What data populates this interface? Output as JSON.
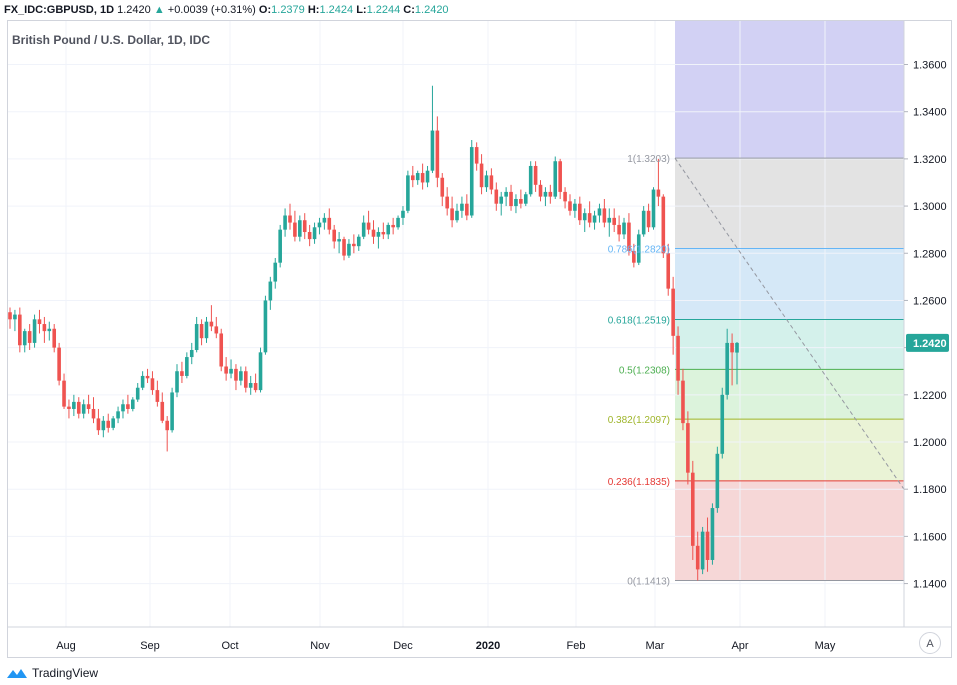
{
  "header": {
    "symbol": "FX_IDC:GBPUSD, 1D",
    "last": "1.2420",
    "change": "+0.0039 (+0.31%)",
    "open_label": "O:",
    "open": "1.2379",
    "high_label": "H:",
    "high": "1.2424",
    "low_label": "L:",
    "low": "1.2244",
    "close_label": "C:",
    "close": "1.2420"
  },
  "chart_title": "British Pound / U.S. Dollar, 1D, IDC",
  "footer": {
    "brand": "TradingView"
  },
  "auto_scale_label": "A",
  "colors": {
    "up": "#26a69a",
    "down": "#ef5350",
    "grid": "#f0f3fa",
    "axis_text": "#131722",
    "price_badge": "#26a69a"
  },
  "chart_data": {
    "type": "candlestick",
    "title": "British Pound / U.S. Dollar, 1D, IDC",
    "y_ticks": [
      "1.3600",
      "1.3400",
      "1.3200",
      "1.3000",
      "1.2800",
      "1.2600",
      "1.2400",
      "1.2200",
      "1.2000",
      "1.1800",
      "1.1600",
      "1.1400"
    ],
    "ylim": [
      1.1198,
      1.3836
    ],
    "x_ticks": [
      {
        "label": "Aug",
        "bold": false
      },
      {
        "label": "Sep",
        "bold": false
      },
      {
        "label": "Oct",
        "bold": false
      },
      {
        "label": "Nov",
        "bold": false
      },
      {
        "label": "Dec",
        "bold": false
      },
      {
        "label": "2020",
        "bold": true
      },
      {
        "label": "Feb",
        "bold": false
      },
      {
        "label": "Mar",
        "bold": false
      },
      {
        "label": "Apr",
        "bold": false
      },
      {
        "label": "May",
        "bold": false
      }
    ],
    "current_price": "1.2420",
    "fibonacci": {
      "high": 1.3203,
      "low": 1.1413,
      "levels": [
        {
          "label": "1(1.3203)",
          "value": 1.3203,
          "color": "#9598a1",
          "fill": "#e3e3e3"
        },
        {
          "label": "0.786(1.2820)",
          "value": 1.282,
          "color": "#64b5f6",
          "fill": "#d5e8f7"
        },
        {
          "label": "0.618(1.2519)",
          "value": 1.2519,
          "color": "#26a69a",
          "fill": "#d4f1eb"
        },
        {
          "label": "0.5(1.2308)",
          "value": 1.2308,
          "color": "#4caf50",
          "fill": "#dcf3dc"
        },
        {
          "label": "0.382(1.2097)",
          "value": 1.2097,
          "color": "#9fb52b",
          "fill": "#eaf3d6"
        },
        {
          "label": "0.236(1.1835)",
          "value": 1.1835,
          "color": "#e53935",
          "fill": "#f6d7d7"
        },
        {
          "label": "0(1.1413)",
          "value": 1.1413,
          "color": "#9598a1",
          "fill": ""
        }
      ],
      "extension_fill": "#d2d1f4"
    },
    "series": [
      {
        "name": "GBPUSD",
        "candles": [
          [
            1.255,
            1.257,
            1.248,
            1.252
          ],
          [
            1.252,
            1.256,
            1.247,
            1.254
          ],
          [
            1.254,
            1.257,
            1.238,
            1.241
          ],
          [
            1.241,
            1.248,
            1.238,
            1.247
          ],
          [
            1.247,
            1.25,
            1.239,
            1.242
          ],
          [
            1.242,
            1.254,
            1.24,
            1.252
          ],
          [
            1.252,
            1.256,
            1.246,
            1.25
          ],
          [
            1.25,
            1.253,
            1.242,
            1.247
          ],
          [
            1.247,
            1.251,
            1.243,
            1.248
          ],
          [
            1.248,
            1.25,
            1.238,
            1.24
          ],
          [
            1.24,
            1.242,
            1.224,
            1.226
          ],
          [
            1.226,
            1.229,
            1.214,
            1.215
          ],
          [
            1.215,
            1.218,
            1.21,
            1.214
          ],
          [
            1.214,
            1.22,
            1.211,
            1.217
          ],
          [
            1.217,
            1.219,
            1.21,
            1.212
          ],
          [
            1.212,
            1.218,
            1.21,
            1.216
          ],
          [
            1.216,
            1.22,
            1.212,
            1.214
          ],
          [
            1.214,
            1.219,
            1.208,
            1.21
          ],
          [
            1.21,
            1.214,
            1.203,
            1.205
          ],
          [
            1.205,
            1.211,
            1.202,
            1.209
          ],
          [
            1.209,
            1.212,
            1.204,
            1.206
          ],
          [
            1.206,
            1.211,
            1.205,
            1.21
          ],
          [
            1.21,
            1.215,
            1.208,
            1.213
          ],
          [
            1.213,
            1.218,
            1.21,
            1.216
          ],
          [
            1.216,
            1.22,
            1.212,
            1.214
          ],
          [
            1.214,
            1.219,
            1.213,
            1.218
          ],
          [
            1.218,
            1.225,
            1.217,
            1.223
          ],
          [
            1.223,
            1.23,
            1.222,
            1.228
          ],
          [
            1.228,
            1.231,
            1.225,
            1.227
          ],
          [
            1.227,
            1.23,
            1.22,
            1.222
          ],
          [
            1.222,
            1.226,
            1.215,
            1.217
          ],
          [
            1.217,
            1.221,
            1.208,
            1.209
          ],
          [
            1.209,
            1.211,
            1.196,
            1.205
          ],
          [
            1.205,
            1.223,
            1.204,
            1.221
          ],
          [
            1.221,
            1.233,
            1.219,
            1.23
          ],
          [
            1.23,
            1.234,
            1.225,
            1.228
          ],
          [
            1.228,
            1.238,
            1.227,
            1.236
          ],
          [
            1.236,
            1.242,
            1.233,
            1.239
          ],
          [
            1.239,
            1.253,
            1.238,
            1.25
          ],
          [
            1.25,
            1.252,
            1.241,
            1.244
          ],
          [
            1.244,
            1.253,
            1.242,
            1.251
          ],
          [
            1.251,
            1.258,
            1.247,
            1.249
          ],
          [
            1.249,
            1.253,
            1.244,
            1.246
          ],
          [
            1.246,
            1.248,
            1.23,
            1.232
          ],
          [
            1.232,
            1.236,
            1.226,
            1.229
          ],
          [
            1.229,
            1.235,
            1.227,
            1.231
          ],
          [
            1.231,
            1.233,
            1.222,
            1.226
          ],
          [
            1.226,
            1.232,
            1.224,
            1.23
          ],
          [
            1.23,
            1.232,
            1.221,
            1.223
          ],
          [
            1.223,
            1.228,
            1.22,
            1.225
          ],
          [
            1.225,
            1.229,
            1.221,
            1.222
          ],
          [
            1.222,
            1.24,
            1.221,
            1.238
          ],
          [
            1.238,
            1.262,
            1.237,
            1.26
          ],
          [
            1.26,
            1.27,
            1.256,
            1.268
          ],
          [
            1.268,
            1.278,
            1.265,
            1.276
          ],
          [
            1.276,
            1.292,
            1.274,
            1.29
          ],
          [
            1.29,
            1.299,
            1.287,
            1.296
          ],
          [
            1.296,
            1.301,
            1.29,
            1.293
          ],
          [
            1.293,
            1.298,
            1.285,
            1.287
          ],
          [
            1.287,
            1.296,
            1.285,
            1.294
          ],
          [
            1.294,
            1.297,
            1.286,
            1.289
          ],
          [
            1.289,
            1.292,
            1.283,
            1.286
          ],
          [
            1.286,
            1.293,
            1.284,
            1.291
          ],
          [
            1.291,
            1.295,
            1.288,
            1.293
          ],
          [
            1.293,
            1.297,
            1.29,
            1.295
          ],
          [
            1.295,
            1.299,
            1.288,
            1.29
          ],
          [
            1.29,
            1.292,
            1.282,
            1.285
          ],
          [
            1.285,
            1.289,
            1.28,
            1.286
          ],
          [
            1.286,
            1.287,
            1.277,
            1.279
          ],
          [
            1.279,
            1.286,
            1.278,
            1.284
          ],
          [
            1.284,
            1.288,
            1.28,
            1.283
          ],
          [
            1.283,
            1.288,
            1.281,
            1.287
          ],
          [
            1.287,
            1.296,
            1.286,
            1.293
          ],
          [
            1.293,
            1.298,
            1.288,
            1.29
          ],
          [
            1.29,
            1.294,
            1.284,
            1.287
          ],
          [
            1.287,
            1.291,
            1.282,
            1.289
          ],
          [
            1.289,
            1.293,
            1.286,
            1.288
          ],
          [
            1.288,
            1.293,
            1.286,
            1.292
          ],
          [
            1.292,
            1.295,
            1.288,
            1.291
          ],
          [
            1.291,
            1.296,
            1.29,
            1.295
          ],
          [
            1.295,
            1.3,
            1.292,
            1.298
          ],
          [
            1.298,
            1.315,
            1.297,
            1.313
          ],
          [
            1.313,
            1.317,
            1.308,
            1.311
          ],
          [
            1.311,
            1.315,
            1.309,
            1.314
          ],
          [
            1.314,
            1.318,
            1.307,
            1.31
          ],
          [
            1.31,
            1.317,
            1.308,
            1.315
          ],
          [
            1.315,
            1.351,
            1.314,
            1.332
          ],
          [
            1.332,
            1.338,
            1.308,
            1.312
          ],
          [
            1.312,
            1.314,
            1.3,
            1.304
          ],
          [
            1.304,
            1.308,
            1.296,
            1.299
          ],
          [
            1.299,
            1.304,
            1.291,
            1.294
          ],
          [
            1.294,
            1.301,
            1.293,
            1.298
          ],
          [
            1.298,
            1.304,
            1.295,
            1.301
          ],
          [
            1.301,
            1.305,
            1.294,
            1.296
          ],
          [
            1.296,
            1.328,
            1.295,
            1.325
          ],
          [
            1.325,
            1.327,
            1.315,
            1.318
          ],
          [
            1.318,
            1.322,
            1.305,
            1.308
          ],
          [
            1.308,
            1.315,
            1.306,
            1.313
          ],
          [
            1.313,
            1.316,
            1.305,
            1.307
          ],
          [
            1.307,
            1.31,
            1.298,
            1.301
          ],
          [
            1.301,
            1.306,
            1.296,
            1.304
          ],
          [
            1.304,
            1.308,
            1.3,
            1.306
          ],
          [
            1.306,
            1.309,
            1.298,
            1.3
          ],
          [
            1.3,
            1.305,
            1.297,
            1.303
          ],
          [
            1.303,
            1.307,
            1.299,
            1.301
          ],
          [
            1.301,
            1.306,
            1.3,
            1.305
          ],
          [
            1.305,
            1.319,
            1.304,
            1.317
          ],
          [
            1.317,
            1.319,
            1.306,
            1.309
          ],
          [
            1.309,
            1.311,
            1.302,
            1.304
          ],
          [
            1.304,
            1.308,
            1.3,
            1.306
          ],
          [
            1.306,
            1.309,
            1.301,
            1.304
          ],
          [
            1.304,
            1.321,
            1.303,
            1.319
          ],
          [
            1.319,
            1.32,
            1.303,
            1.306
          ],
          [
            1.306,
            1.308,
            1.299,
            1.302
          ],
          [
            1.302,
            1.305,
            1.296,
            1.298
          ],
          [
            1.298,
            1.303,
            1.295,
            1.301
          ],
          [
            1.301,
            1.304,
            1.292,
            1.294
          ],
          [
            1.294,
            1.299,
            1.289,
            1.297
          ],
          [
            1.297,
            1.302,
            1.291,
            1.293
          ],
          [
            1.293,
            1.298,
            1.29,
            1.296
          ],
          [
            1.296,
            1.301,
            1.293,
            1.299
          ],
          [
            1.299,
            1.303,
            1.291,
            1.293
          ],
          [
            1.293,
            1.299,
            1.287,
            1.295
          ],
          [
            1.295,
            1.299,
            1.289,
            1.292
          ],
          [
            1.292,
            1.296,
            1.285,
            1.288
          ],
          [
            1.288,
            1.295,
            1.286,
            1.293
          ],
          [
            1.293,
            1.297,
            1.279,
            1.281
          ],
          [
            1.281,
            1.284,
            1.274,
            1.276
          ],
          [
            1.276,
            1.29,
            1.275,
            1.288
          ],
          [
            1.288,
            1.3,
            1.287,
            1.298
          ],
          [
            1.298,
            1.301,
            1.289,
            1.291
          ],
          [
            1.291,
            1.308,
            1.29,
            1.307
          ],
          [
            1.307,
            1.32,
            1.3,
            1.304
          ],
          [
            1.304,
            1.305,
            1.278,
            1.28
          ],
          [
            1.28,
            1.284,
            1.262,
            1.265
          ],
          [
            1.265,
            1.27,
            1.237,
            1.245
          ],
          [
            1.245,
            1.249,
            1.22,
            1.226
          ],
          [
            1.226,
            1.231,
            1.205,
            1.208
          ],
          [
            1.208,
            1.213,
            1.182,
            1.187
          ],
          [
            1.187,
            1.192,
            1.15,
            1.156
          ],
          [
            1.156,
            1.162,
            1.1413,
            1.146
          ],
          [
            1.146,
            1.164,
            1.144,
            1.162
          ],
          [
            1.162,
            1.168,
            1.145,
            1.15
          ],
          [
            1.15,
            1.174,
            1.148,
            1.172
          ],
          [
            1.172,
            1.198,
            1.17,
            1.195
          ],
          [
            1.195,
            1.223,
            1.193,
            1.22
          ],
          [
            1.22,
            1.248,
            1.218,
            1.242
          ],
          [
            1.242,
            1.246,
            1.224,
            1.238
          ],
          [
            1.2379,
            1.2424,
            1.2244,
            1.242
          ]
        ]
      }
    ]
  }
}
